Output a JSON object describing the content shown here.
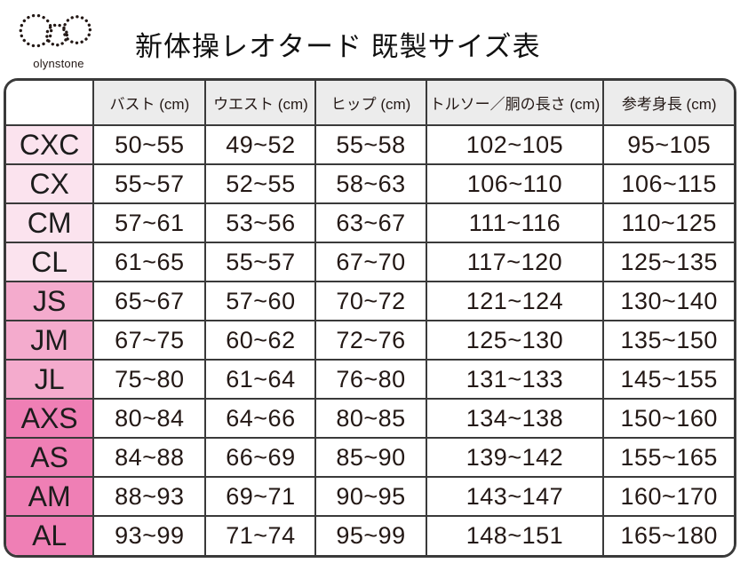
{
  "logo": {
    "text": "olynstone"
  },
  "title": "新体操レオタード 既製サイズ表",
  "colors": {
    "row_light": "#fbe3ee",
    "row_medium": "#f4abcd",
    "row_dark": "#ef7fb5",
    "header_bg": "#ececec",
    "border": "#3a3a3a",
    "text": "#231815"
  },
  "chart_data": {
    "type": "table",
    "title": "新体操レオタード 既製サイズ表",
    "columns": [
      "",
      "バスト (cm)",
      "ウエスト (cm)",
      "ヒップ (cm)",
      "トルソー／胴の長さ (cm)",
      "参考身長 (cm)"
    ],
    "rows": [
      {
        "size": "CXC",
        "tone": "light",
        "values": [
          "50~55",
          "49~52",
          "55~58",
          "102~105",
          "95~105"
        ]
      },
      {
        "size": "CX",
        "tone": "light",
        "values": [
          "55~57",
          "52~55",
          "58~63",
          "106~110",
          "106~115"
        ]
      },
      {
        "size": "CM",
        "tone": "light",
        "values": [
          "57~61",
          "53~56",
          "63~67",
          "111~116",
          "110~125"
        ]
      },
      {
        "size": "CL",
        "tone": "light",
        "values": [
          "61~65",
          "55~57",
          "67~70",
          "117~120",
          "125~135"
        ]
      },
      {
        "size": "JS",
        "tone": "medium",
        "values": [
          "65~67",
          "57~60",
          "70~72",
          "121~124",
          "130~140"
        ]
      },
      {
        "size": "JM",
        "tone": "medium",
        "values": [
          "67~75",
          "60~62",
          "72~76",
          "125~130",
          "135~150"
        ]
      },
      {
        "size": "JL",
        "tone": "medium",
        "values": [
          "75~80",
          "61~64",
          "76~80",
          "131~133",
          "145~155"
        ]
      },
      {
        "size": "AXS",
        "tone": "dark",
        "values": [
          "80~84",
          "64~66",
          "80~85",
          "134~138",
          "150~160"
        ]
      },
      {
        "size": "AS",
        "tone": "dark",
        "values": [
          "84~88",
          "66~69",
          "85~90",
          "139~142",
          "155~165"
        ]
      },
      {
        "size": "AM",
        "tone": "dark",
        "values": [
          "88~93",
          "69~71",
          "90~95",
          "143~147",
          "160~170"
        ]
      },
      {
        "size": "AL",
        "tone": "dark",
        "values": [
          "93~99",
          "71~74",
          "95~99",
          "148~151",
          "165~180"
        ]
      }
    ]
  }
}
